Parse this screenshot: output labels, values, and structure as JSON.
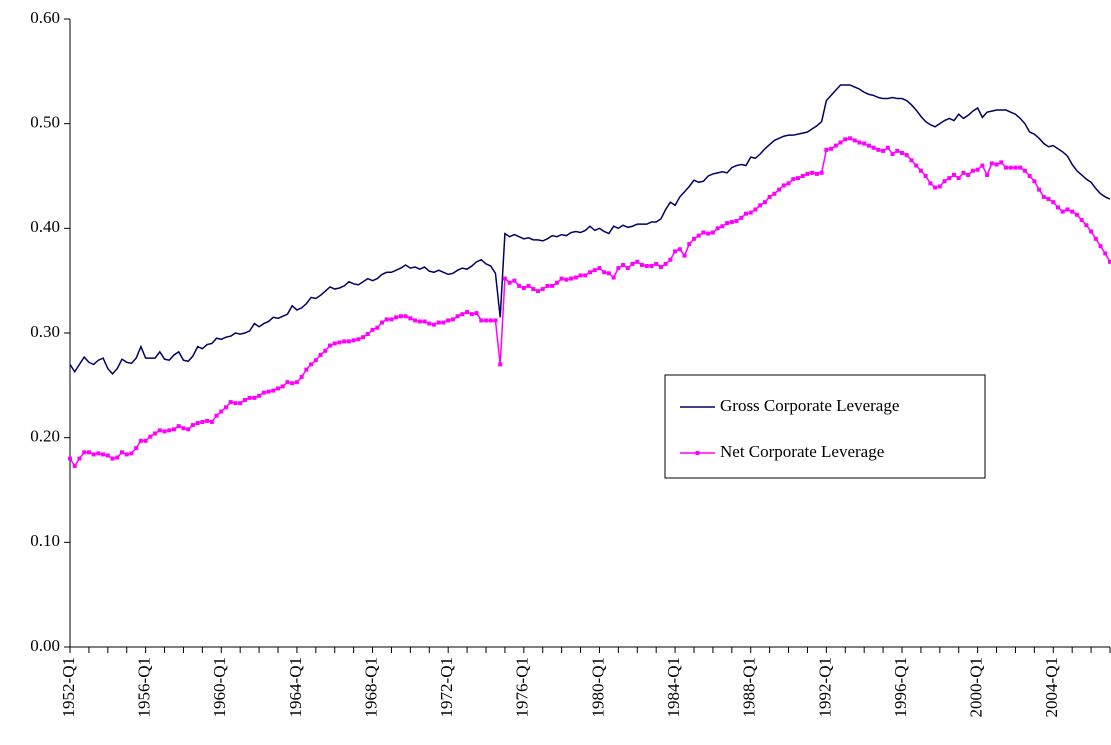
{
  "chart_data": {
    "type": "line",
    "categories": [
      "1952-Q1",
      null,
      null,
      null,
      null,
      null,
      null,
      null,
      null,
      null,
      null,
      null,
      null,
      null,
      null,
      null,
      "1956-Q1",
      null,
      null,
      null,
      null,
      null,
      null,
      null,
      null,
      null,
      null,
      null,
      null,
      null,
      null,
      null,
      "1960-Q1",
      null,
      null,
      null,
      null,
      null,
      null,
      null,
      null,
      null,
      null,
      null,
      null,
      null,
      null,
      null,
      "1964-Q1",
      null,
      null,
      null,
      null,
      null,
      null,
      null,
      null,
      null,
      null,
      null,
      null,
      null,
      null,
      null,
      "1968-Q1",
      null,
      null,
      null,
      null,
      null,
      null,
      null,
      null,
      null,
      null,
      null,
      null,
      null,
      null,
      null,
      "1972-Q1",
      null,
      null,
      null,
      null,
      null,
      null,
      null,
      null,
      null,
      null,
      null,
      null,
      null,
      null,
      null,
      "1976-Q1",
      null,
      null,
      null,
      null,
      null,
      null,
      null,
      null,
      null,
      null,
      null,
      null,
      null,
      null,
      null,
      "1980-Q1",
      null,
      null,
      null,
      null,
      null,
      null,
      null,
      null,
      null,
      null,
      null,
      null,
      null,
      null,
      null,
      "1984-Q1",
      null,
      null,
      null,
      null,
      null,
      null,
      null,
      null,
      null,
      null,
      null,
      null,
      null,
      null,
      null,
      "1988-Q1",
      null,
      null,
      null,
      null,
      null,
      null,
      null,
      null,
      null,
      null,
      null,
      null,
      null,
      null,
      null,
      "1992-Q1",
      null,
      null,
      null,
      null,
      null,
      null,
      null,
      null,
      null,
      null,
      null,
      null,
      null,
      null,
      null,
      "1996-Q1",
      null,
      null,
      null,
      null,
      null,
      null,
      null,
      null,
      null,
      null,
      null,
      null,
      null,
      null,
      null,
      "2000-Q1",
      null,
      null,
      null,
      null,
      null,
      null,
      null,
      null,
      null,
      null,
      null,
      null,
      null,
      null,
      null,
      "2004-Q1",
      null,
      null,
      null,
      null,
      null,
      null,
      null,
      null,
      null,
      null,
      null,
      null
    ],
    "series": [
      {
        "name": "Gross Corporate Leverage",
        "color": "#000066",
        "values": [
          0.27,
          0.263,
          0.27,
          0.277,
          0.272,
          0.27,
          0.274,
          0.276,
          0.266,
          0.261,
          0.266,
          0.275,
          0.272,
          0.271,
          0.276,
          0.287,
          0.276,
          0.276,
          0.276,
          0.282,
          0.275,
          0.274,
          0.279,
          0.282,
          0.274,
          0.273,
          0.278,
          0.287,
          0.285,
          0.289,
          0.29,
          0.295,
          0.294,
          0.296,
          0.297,
          0.3,
          0.299,
          0.3,
          0.302,
          0.309,
          0.306,
          0.309,
          0.311,
          0.315,
          0.314,
          0.316,
          0.318,
          0.326,
          0.322,
          0.324,
          0.328,
          0.334,
          0.333,
          0.336,
          0.34,
          0.344,
          0.342,
          0.343,
          0.345,
          0.349,
          0.347,
          0.346,
          0.349,
          0.352,
          0.35,
          0.352,
          0.356,
          0.358,
          0.358,
          0.36,
          0.362,
          0.365,
          0.362,
          0.363,
          0.361,
          0.363,
          0.359,
          0.358,
          0.36,
          0.358,
          0.356,
          0.357,
          0.36,
          0.362,
          0.361,
          0.364,
          0.368,
          0.37,
          0.366,
          0.364,
          0.357,
          0.315,
          0.395,
          0.392,
          0.394,
          0.392,
          0.39,
          0.391,
          0.389,
          0.389,
          0.388,
          0.39,
          0.393,
          0.392,
          0.394,
          0.393,
          0.396,
          0.397,
          0.396,
          0.398,
          0.402,
          0.398,
          0.4,
          0.397,
          0.395,
          0.402,
          0.4,
          0.403,
          0.401,
          0.402,
          0.404,
          0.404,
          0.404,
          0.406,
          0.406,
          0.409,
          0.418,
          0.425,
          0.422,
          0.43,
          0.435,
          0.44,
          0.446,
          0.444,
          0.445,
          0.45,
          0.452,
          0.453,
          0.454,
          0.453,
          0.458,
          0.46,
          0.461,
          0.46,
          0.468,
          0.467,
          0.471,
          0.476,
          0.48,
          0.484,
          0.486,
          0.488,
          0.489,
          0.489,
          0.49,
          0.491,
          0.492,
          0.495,
          0.498,
          0.502,
          0.522,
          0.527,
          0.532,
          0.537,
          0.537,
          0.537,
          0.535,
          0.533,
          0.53,
          0.528,
          0.527,
          0.525,
          0.524,
          0.524,
          0.525,
          0.524,
          0.524,
          0.522,
          0.518,
          0.513,
          0.507,
          0.502,
          0.499,
          0.497,
          0.5,
          0.503,
          0.505,
          0.503,
          0.509,
          0.505,
          0.508,
          0.512,
          0.515,
          0.506,
          0.511,
          0.512,
          0.513,
          0.513,
          0.513,
          0.511,
          0.509,
          0.505,
          0.5,
          0.492,
          0.49,
          0.486,
          0.481,
          0.478,
          0.479,
          0.476,
          0.473,
          0.469,
          0.461,
          0.455,
          0.451,
          0.447,
          0.444,
          0.438,
          0.433,
          0.43,
          0.428
        ]
      },
      {
        "name": "Net Corporate Leverage",
        "color": "#ff00ff",
        "values": [
          0.18,
          0.173,
          0.18,
          0.186,
          0.186,
          0.184,
          0.185,
          0.184,
          0.183,
          0.18,
          0.181,
          0.186,
          0.184,
          0.185,
          0.19,
          0.197,
          0.197,
          0.201,
          0.204,
          0.207,
          0.206,
          0.207,
          0.208,
          0.211,
          0.209,
          0.208,
          0.212,
          0.214,
          0.215,
          0.216,
          0.215,
          0.221,
          0.225,
          0.229,
          0.234,
          0.233,
          0.233,
          0.236,
          0.238,
          0.238,
          0.24,
          0.243,
          0.244,
          0.245,
          0.247,
          0.249,
          0.253,
          0.252,
          0.253,
          0.258,
          0.265,
          0.27,
          0.274,
          0.279,
          0.283,
          0.288,
          0.29,
          0.291,
          0.292,
          0.292,
          0.293,
          0.294,
          0.296,
          0.299,
          0.303,
          0.305,
          0.31,
          0.313,
          0.313,
          0.315,
          0.316,
          0.316,
          0.314,
          0.312,
          0.311,
          0.311,
          0.309,
          0.308,
          0.31,
          0.31,
          0.312,
          0.313,
          0.316,
          0.318,
          0.32,
          0.318,
          0.319,
          0.312,
          0.312,
          0.312,
          0.312,
          0.27,
          0.352,
          0.348,
          0.35,
          0.345,
          0.343,
          0.345,
          0.342,
          0.34,
          0.342,
          0.345,
          0.345,
          0.348,
          0.352,
          0.351,
          0.352,
          0.353,
          0.355,
          0.355,
          0.358,
          0.36,
          0.362,
          0.358,
          0.357,
          0.353,
          0.362,
          0.365,
          0.362,
          0.366,
          0.368,
          0.365,
          0.364,
          0.364,
          0.366,
          0.363,
          0.366,
          0.37,
          0.378,
          0.38,
          0.374,
          0.385,
          0.39,
          0.393,
          0.396,
          0.395,
          0.396,
          0.4,
          0.402,
          0.405,
          0.406,
          0.407,
          0.41,
          0.414,
          0.415,
          0.418,
          0.422,
          0.425,
          0.43,
          0.433,
          0.437,
          0.441,
          0.443,
          0.447,
          0.448,
          0.45,
          0.452,
          0.453,
          0.452,
          0.453,
          0.475,
          0.476,
          0.479,
          0.482,
          0.485,
          0.486,
          0.484,
          0.482,
          0.481,
          0.479,
          0.477,
          0.475,
          0.474,
          0.477,
          0.471,
          0.474,
          0.472,
          0.47,
          0.465,
          0.46,
          0.455,
          0.45,
          0.443,
          0.439,
          0.44,
          0.445,
          0.448,
          0.451,
          0.448,
          0.453,
          0.451,
          0.455,
          0.456,
          0.46,
          0.451,
          0.462,
          0.461,
          0.463,
          0.458,
          0.458,
          0.458,
          0.458,
          0.455,
          0.45,
          0.445,
          0.437,
          0.43,
          0.428,
          0.425,
          0.42,
          0.416,
          0.418,
          0.416,
          0.413,
          0.408,
          0.403,
          0.397,
          0.39,
          0.383,
          0.376,
          0.368
        ]
      }
    ],
    "ylim": [
      0,
      0.6
    ],
    "yticks": [
      {
        "value": 0,
        "label": "0.00"
      },
      {
        "value": 0.1,
        "label": "0.10"
      },
      {
        "value": 0.2,
        "label": "0.20"
      },
      {
        "value": 0.3,
        "label": "0.30"
      },
      {
        "value": 0.4,
        "label": "0.40"
      },
      {
        "value": 0.5,
        "label": "0.50"
      },
      {
        "value": 0.6,
        "label": "0.60"
      }
    ],
    "grid": false,
    "legend": "right"
  }
}
